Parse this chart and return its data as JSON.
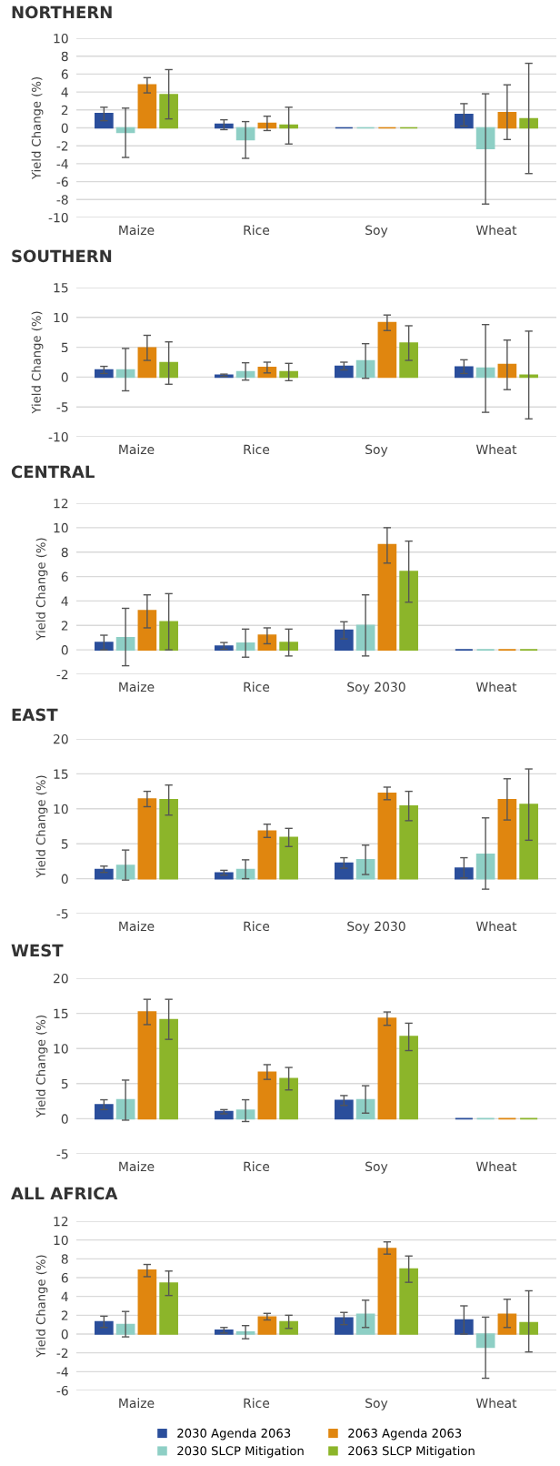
{
  "chart_data": [
    {
      "type": "bar",
      "title": "NORTHERN",
      "ylabel": "Yield Change (%)",
      "categories": [
        "Maize",
        "Rice",
        "Soy",
        "Wheat"
      ],
      "ylim": [
        -10,
        10
      ],
      "yticks": [
        -10,
        -8,
        -6,
        -4,
        -2,
        0,
        2,
        4,
        6,
        8,
        10
      ],
      "grid": "y",
      "series": [
        {
          "color": "#2a4e9b",
          "values": [
            1.6,
            0.4,
            0,
            1.5
          ],
          "errors": [
            [
              0.8,
              2.3
            ],
            [
              -0.2,
              0.9
            ],
            null,
            [
              0.2,
              2.7
            ]
          ]
        },
        {
          "color": "#8ecfc5",
          "values": [
            -0.5,
            -1.3,
            0,
            -2.3
          ],
          "errors": [
            [
              -3.3,
              2.2
            ],
            [
              -3.4,
              0.7
            ],
            null,
            [
              -8.5,
              3.8
            ]
          ]
        },
        {
          "color": "#e0860f",
          "values": [
            4.8,
            0.5,
            0,
            1.7
          ],
          "errors": [
            [
              3.9,
              5.6
            ],
            [
              -0.3,
              1.3
            ],
            null,
            [
              -1.3,
              4.8
            ]
          ]
        },
        {
          "color": "#8cb52a",
          "values": [
            3.7,
            0.3,
            0,
            1.0
          ],
          "errors": [
            [
              1.0,
              6.5
            ],
            [
              -1.8,
              2.3
            ],
            null,
            [
              -5.1,
              7.2
            ]
          ]
        }
      ]
    },
    {
      "type": "bar",
      "title": "SOUTHERN",
      "ylabel": "Yield Change (%)",
      "categories": [
        "Maize",
        "Rice",
        "Soy",
        "Wheat"
      ],
      "ylim": [
        -10,
        15
      ],
      "yticks": [
        -10,
        -5,
        0,
        5,
        10,
        15
      ],
      "grid": "y",
      "series": [
        {
          "color": "#2a4e9b",
          "values": [
            1.2,
            0.3,
            1.8,
            1.7
          ],
          "errors": [
            [
              0.6,
              1.8
            ],
            [
              0.1,
              0.5
            ],
            [
              1.2,
              2.5
            ],
            [
              0.6,
              2.9
            ]
          ]
        },
        {
          "color": "#8ecfc5",
          "values": [
            1.2,
            0.9,
            2.7,
            1.5
          ],
          "errors": [
            [
              -2.3,
              4.8
            ],
            [
              -0.5,
              2.4
            ],
            [
              -0.2,
              5.6
            ],
            [
              -5.9,
              8.8
            ]
          ]
        },
        {
          "color": "#e0860f",
          "values": [
            4.9,
            1.6,
            9.1,
            2.1
          ],
          "errors": [
            [
              2.8,
              7.0
            ],
            [
              0.7,
              2.5
            ],
            [
              7.8,
              10.4
            ],
            [
              -2.1,
              6.2
            ]
          ]
        },
        {
          "color": "#8cb52a",
          "values": [
            2.4,
            0.9,
            5.7,
            0.3
          ],
          "errors": [
            [
              -1.2,
              5.9
            ],
            [
              -0.6,
              2.3
            ],
            [
              2.8,
              8.6
            ],
            [
              -7.0,
              7.7
            ]
          ]
        }
      ]
    },
    {
      "type": "bar",
      "title": "CENTRAL",
      "ylabel": "Yield Change (%)",
      "categories": [
        "Maize",
        "Rice",
        "Soy 2030",
        "Wheat"
      ],
      "ylim": [
        -2,
        12
      ],
      "yticks": [
        -2,
        0,
        2,
        4,
        6,
        8,
        10,
        12
      ],
      "grid": "y",
      "series": [
        {
          "color": "#2a4e9b",
          "values": [
            0.6,
            0.3,
            1.6,
            0
          ],
          "errors": [
            [
              0,
              1.2
            ],
            [
              0.05,
              0.6
            ],
            [
              0.9,
              2.3
            ],
            null
          ]
        },
        {
          "color": "#8ecfc5",
          "values": [
            1.0,
            0.55,
            2.0,
            0
          ],
          "errors": [
            [
              -1.3,
              3.4
            ],
            [
              -0.6,
              1.7
            ],
            [
              -0.5,
              4.5
            ],
            null
          ]
        },
        {
          "color": "#e0860f",
          "values": [
            3.2,
            1.2,
            8.6,
            0
          ],
          "errors": [
            [
              1.8,
              4.5
            ],
            [
              0.5,
              1.8
            ],
            [
              7.1,
              10.0
            ],
            null
          ]
        },
        {
          "color": "#8cb52a",
          "values": [
            2.3,
            0.6,
            6.4,
            0
          ],
          "errors": [
            [
              0,
              4.6
            ],
            [
              -0.5,
              1.7
            ],
            [
              3.9,
              8.9
            ],
            null
          ]
        }
      ]
    },
    {
      "type": "bar",
      "title": "EAST",
      "ylabel": "Yield Change (%)",
      "categories": [
        "Maize",
        "Rice",
        "Soy 2030",
        "Wheat"
      ],
      "ylim": [
        -5,
        20
      ],
      "yticks": [
        -5,
        0,
        5,
        10,
        15,
        20
      ],
      "grid": "y",
      "series": [
        {
          "color": "#2a4e9b",
          "values": [
            1.3,
            0.8,
            2.2,
            1.5
          ],
          "errors": [
            [
              0.9,
              1.8
            ],
            [
              0.5,
              1.2
            ],
            [
              1.5,
              3.0
            ],
            [
              0.1,
              3.0
            ]
          ]
        },
        {
          "color": "#8ecfc5",
          "values": [
            1.9,
            1.3,
            2.7,
            3.5
          ],
          "errors": [
            [
              -0.2,
              4.1
            ],
            [
              0,
              2.7
            ],
            [
              0.6,
              4.8
            ],
            [
              -1.5,
              8.7
            ]
          ]
        },
        {
          "color": "#e0860f",
          "values": [
            11.4,
            6.8,
            12.2,
            11.3
          ],
          "errors": [
            [
              10.3,
              12.5
            ],
            [
              5.9,
              7.8
            ],
            [
              11.3,
              13.1
            ],
            [
              8.4,
              14.3
            ]
          ]
        },
        {
          "color": "#8cb52a",
          "values": [
            11.3,
            5.9,
            10.4,
            10.6
          ],
          "errors": [
            [
              9.1,
              13.4
            ],
            [
              4.6,
              7.2
            ],
            [
              8.3,
              12.5
            ],
            [
              5.5,
              15.7
            ]
          ]
        }
      ]
    },
    {
      "type": "bar",
      "title": "WEST",
      "ylabel": "Yield Change (%)",
      "categories": [
        "Maize",
        "Rice",
        "Soy",
        "Wheat"
      ],
      "ylim": [
        -5,
        20
      ],
      "yticks": [
        -5,
        0,
        5,
        10,
        15,
        20
      ],
      "grid": "y",
      "series": [
        {
          "color": "#2a4e9b",
          "values": [
            2.0,
            1.0,
            2.6,
            0
          ],
          "errors": [
            [
              1.3,
              2.7
            ],
            [
              0.7,
              1.3
            ],
            [
              1.9,
              3.3
            ],
            null
          ]
        },
        {
          "color": "#8ecfc5",
          "values": [
            2.7,
            1.2,
            2.7,
            0
          ],
          "errors": [
            [
              -0.2,
              5.5
            ],
            [
              -0.4,
              2.7
            ],
            [
              0.8,
              4.7
            ],
            null
          ]
        },
        {
          "color": "#e0860f",
          "values": [
            15.2,
            6.6,
            14.3,
            0
          ],
          "errors": [
            [
              13.4,
              17.0
            ],
            [
              5.6,
              7.7
            ],
            [
              13.3,
              15.2
            ],
            null
          ]
        },
        {
          "color": "#8cb52a",
          "values": [
            14.1,
            5.7,
            11.7,
            0
          ],
          "errors": [
            [
              11.3,
              17.0
            ],
            [
              4.1,
              7.3
            ],
            [
              9.7,
              13.6
            ],
            null
          ]
        }
      ]
    },
    {
      "type": "bar",
      "title": "ALL AFRICA",
      "ylabel": "Yield Change (%)",
      "categories": [
        "Maize",
        "Rice",
        "Soy",
        "Wheat"
      ],
      "ylim": [
        -6,
        12
      ],
      "yticks": [
        -6,
        -4,
        -2,
        0,
        2,
        4,
        6,
        8,
        10,
        12
      ],
      "grid": "y",
      "legend": "bottom",
      "series": [
        {
          "name": "2030 Agenda 2063",
          "color": "#2a4e9b",
          "values": [
            1.3,
            0.4,
            1.7,
            1.5
          ],
          "errors": [
            [
              0.7,
              1.9
            ],
            [
              0.1,
              0.7
            ],
            [
              1.0,
              2.3
            ],
            [
              0.0,
              3.0
            ]
          ]
        },
        {
          "name": "2030 SLCP Mitigation",
          "color": "#8ecfc5",
          "values": [
            1.0,
            0.2,
            2.1,
            -1.4
          ],
          "errors": [
            [
              -0.3,
              2.4
            ],
            [
              -0.5,
              0.9
            ],
            [
              0.7,
              3.6
            ],
            [
              -4.7,
              1.8
            ]
          ]
        },
        {
          "name": "2063 Agenda 2063",
          "color": "#e0860f",
          "values": [
            6.8,
            1.8,
            9.1,
            2.1
          ],
          "errors": [
            [
              6.1,
              7.4
            ],
            [
              1.5,
              2.2
            ],
            [
              8.5,
              9.8
            ],
            [
              0.7,
              3.7
            ]
          ]
        },
        {
          "name": "2063 SLCP Mitigation",
          "color": "#8cb52a",
          "values": [
            5.4,
            1.3,
            6.9,
            1.2
          ],
          "errors": [
            [
              4.1,
              6.7
            ],
            [
              0.6,
              2.0
            ],
            [
              5.5,
              8.3
            ],
            [
              -1.9,
              4.6
            ]
          ]
        }
      ]
    }
  ]
}
